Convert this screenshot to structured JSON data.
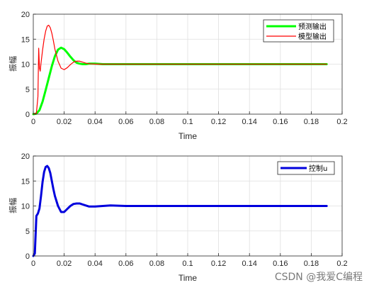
{
  "chart_data": [
    {
      "type": "line",
      "xlabel": "Time",
      "ylabel": "振幅",
      "xlim": [
        0,
        0.2
      ],
      "ylim": [
        0,
        20
      ],
      "xticks": [
        "0",
        "0.02",
        "0.04",
        "0.06",
        "0.08",
        "0.1",
        "0.12",
        "0.14",
        "0.16",
        "0.18",
        "0.2"
      ],
      "yticks": [
        "0",
        "5",
        "10",
        "15",
        "20"
      ],
      "grid": true,
      "legend": "top-right",
      "series": [
        {
          "name": "预测输出",
          "color": "#00ff00",
          "x": [
            0,
            0.002,
            0.004,
            0.006,
            0.008,
            0.01,
            0.012,
            0.014,
            0.016,
            0.018,
            0.02,
            0.022,
            0.024,
            0.026,
            0.028,
            0.03,
            0.032,
            0.034,
            0.036,
            0.04,
            0.045,
            0.05,
            0.06,
            0.08,
            0.1,
            0.12,
            0.14,
            0.16,
            0.19
          ],
          "y": [
            0,
            0.1,
            0.8,
            2.5,
            4.8,
            7.2,
            9.6,
            11.6,
            12.9,
            13.3,
            13.0,
            12.3,
            11.5,
            10.8,
            10.3,
            10.1,
            10.0,
            10.0,
            10.1,
            10.1,
            10.0,
            10.0,
            10.0,
            10.0,
            10.0,
            10.0,
            10.0,
            10.0,
            10.0
          ]
        },
        {
          "name": "模型输出",
          "color": "#ff0000",
          "x": [
            0,
            0.002,
            0.003,
            0.0035,
            0.004,
            0.0045,
            0.005,
            0.006,
            0.007,
            0.008,
            0.009,
            0.01,
            0.011,
            0.012,
            0.013,
            0.014,
            0.016,
            0.018,
            0.02,
            0.022,
            0.024,
            0.026,
            0.028,
            0.03,
            0.032,
            0.034,
            0.036,
            0.04,
            0.045,
            0.05,
            0.06,
            0.08,
            0.1,
            0.12,
            0.14,
            0.16,
            0.19
          ],
          "y": [
            0,
            0.2,
            3.5,
            13.2,
            9.2,
            8.6,
            10.2,
            12.8,
            15.0,
            16.6,
            17.6,
            17.8,
            17.3,
            16.2,
            14.7,
            13.0,
            10.6,
            9.2,
            8.9,
            9.3,
            9.9,
            10.4,
            10.6,
            10.6,
            10.4,
            10.2,
            10.1,
            10.0,
            10.0,
            10.0,
            10.0,
            10.0,
            10.0,
            10.0,
            10.0,
            10.0,
            10.0
          ]
        }
      ]
    },
    {
      "type": "line",
      "xlabel": "Time",
      "ylabel": "振幅",
      "xlim": [
        0,
        0.2
      ],
      "ylim": [
        0,
        20
      ],
      "xticks": [
        "0",
        "0.02",
        "0.04",
        "0.06",
        "0.08",
        "0.1",
        "0.12",
        "0.14",
        "0.16",
        "0.18",
        "0.2"
      ],
      "yticks": [
        "0",
        "5",
        "10",
        "15",
        "20"
      ],
      "grid": true,
      "legend": "top-right",
      "series": [
        {
          "name": "控制u",
          "color": "#0000dd",
          "x": [
            0,
            0.001,
            0.002,
            0.003,
            0.004,
            0.005,
            0.006,
            0.007,
            0.008,
            0.009,
            0.01,
            0.011,
            0.012,
            0.013,
            0.014,
            0.016,
            0.018,
            0.02,
            0.022,
            0.024,
            0.026,
            0.028,
            0.03,
            0.032,
            0.034,
            0.036,
            0.04,
            0.045,
            0.05,
            0.06,
            0.08,
            0.1,
            0.12,
            0.14,
            0.16,
            0.19
          ],
          "y": [
            0,
            0.5,
            8.0,
            8.5,
            9.5,
            12.0,
            14.8,
            16.8,
            17.8,
            18.0,
            17.6,
            16.6,
            15.0,
            13.4,
            12.0,
            10.0,
            8.8,
            8.8,
            9.4,
            10.0,
            10.4,
            10.5,
            10.5,
            10.3,
            10.1,
            9.9,
            9.9,
            10.0,
            10.1,
            10.0,
            10.0,
            10.0,
            10.0,
            10.0,
            10.0,
            10.0
          ]
        }
      ]
    }
  ],
  "watermark": "CSDN @我爱C编程"
}
